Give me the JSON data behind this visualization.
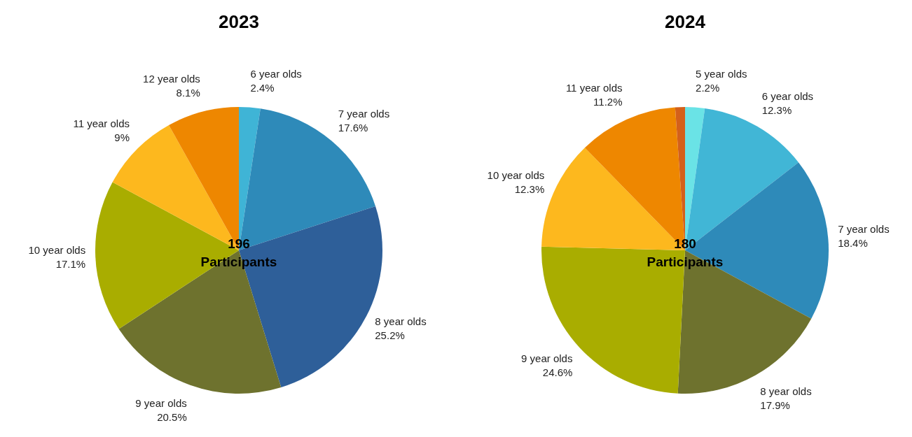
{
  "chart_data": [
    {
      "type": "pie",
      "title": "2023",
      "categories": [
        "6 year olds",
        "7 year olds",
        "8 year olds",
        "9 year olds",
        "10 year olds",
        "11 year olds",
        "12 year olds"
      ],
      "values": [
        2.4,
        17.6,
        25.2,
        20.5,
        17.1,
        9,
        8.1
      ],
      "value_labels": [
        "2.4%",
        "17.6%",
        "25.2%",
        "20.5%",
        "17.1%",
        "9%",
        "8.1%"
      ],
      "colors": [
        "#3fb4d6",
        "#2e8ab9",
        "#2e5f99",
        "#6e722e",
        "#a9ad00",
        "#fdb81e",
        "#ee8700"
      ],
      "annotations": [
        "196\nParticipants"
      ]
    },
    {
      "type": "pie",
      "title": "2024",
      "categories": [
        "5 year olds",
        "6 year olds",
        "7 year olds",
        "8 year olds",
        "9 year olds",
        "10 year olds",
        "11 year olds",
        null
      ],
      "values": [
        2.2,
        12.3,
        18.4,
        17.9,
        24.6,
        12.3,
        11.2,
        1.1
      ],
      "value_labels": [
        "2.2%",
        "12.3%",
        "18.4%",
        "17.9%",
        "24.6%",
        "12.3%",
        "11.2%",
        null
      ],
      "colors": [
        "#6ae3e6",
        "#41b6d6",
        "#2e8ab9",
        "#6e722e",
        "#a9ad00",
        "#fdb81e",
        "#ee8700",
        "#d4601a"
      ],
      "annotations": [
        "180\nParticipants"
      ]
    }
  ]
}
